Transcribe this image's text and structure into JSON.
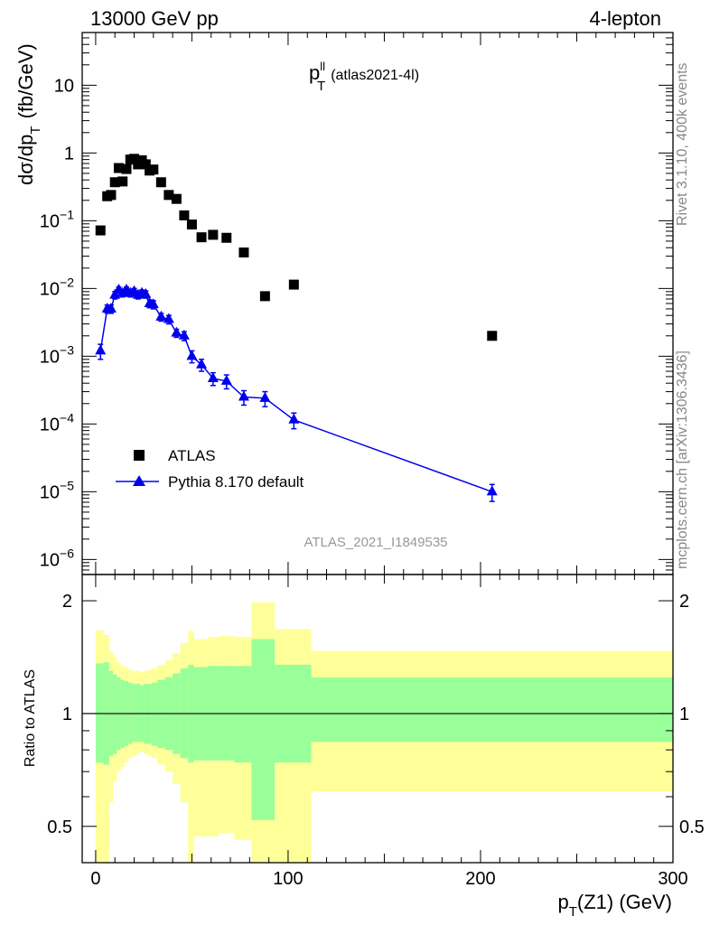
{
  "header": {
    "left": "13000 GeV pp",
    "right": "4-lepton"
  },
  "side_text": {
    "rivet": "Rivet 3.1.10,  400k events",
    "mcplots": "mcplots.cern.ch [arXiv:1306.3436]"
  },
  "analysis_id": "ATLAS_2021_I1849535",
  "colors": {
    "mc": "#0000ee",
    "data": "#000000",
    "band_inner": "#99ff99",
    "band_outer": "#ffff99"
  },
  "chart_data": [
    {
      "type": "scatter",
      "title": "p_T^ll (atlas2021-4l)",
      "title_main": "p",
      "title_sup": "ll",
      "title_sub": "T",
      "title_note": "(atlas2021-4l)",
      "ylabel": "dσ/dp_T (fb/GeV)",
      "ylabel_main": "dσ/dp",
      "ylabel_sub": "T",
      "ylabel_tail": "(fb/GeV)",
      "yscale": "log",
      "ylim": [
        6e-07,
        60
      ],
      "xlim": [
        -7,
        300
      ],
      "y_tick_labels": [
        {
          "v": 10,
          "text": "10"
        },
        {
          "v": 1,
          "text": "1"
        },
        {
          "v": 0.1,
          "text": "10",
          "exp": "−1"
        },
        {
          "v": 0.01,
          "text": "10",
          "exp": "−2"
        },
        {
          "v": 0.001,
          "text": "10",
          "exp": "−3"
        },
        {
          "v": 0.0001,
          "text": "10",
          "exp": "−4"
        },
        {
          "v": 1e-05,
          "text": "10",
          "exp": "−5"
        },
        {
          "v": 1e-06,
          "text": "10",
          "exp": "−6"
        }
      ],
      "legend": {
        "position": "bottom-left",
        "entries": [
          "ATLAS",
          "Pythia 8.170 default"
        ]
      },
      "series": [
        {
          "name": "ATLAS",
          "marker": "square",
          "points": [
            {
              "x": 2.5,
              "y": 0.072
            },
            {
              "x": 6,
              "y": 0.23
            },
            {
              "x": 8,
              "y": 0.24
            },
            {
              "x": 10,
              "y": 0.37
            },
            {
              "x": 12,
              "y": 0.6
            },
            {
              "x": 14,
              "y": 0.38
            },
            {
              "x": 16,
              "y": 0.58
            },
            {
              "x": 18,
              "y": 0.8
            },
            {
              "x": 20,
              "y": 0.82
            },
            {
              "x": 22,
              "y": 0.68
            },
            {
              "x": 24,
              "y": 0.78
            },
            {
              "x": 26,
              "y": 0.68
            },
            {
              "x": 28,
              "y": 0.55
            },
            {
              "x": 30,
              "y": 0.57
            },
            {
              "x": 34,
              "y": 0.37
            },
            {
              "x": 38,
              "y": 0.24
            },
            {
              "x": 42,
              "y": 0.21
            },
            {
              "x": 46,
              "y": 0.12
            },
            {
              "x": 50,
              "y": 0.088
            },
            {
              "x": 55,
              "y": 0.057
            },
            {
              "x": 61,
              "y": 0.062
            },
            {
              "x": 68,
              "y": 0.056
            },
            {
              "x": 77,
              "y": 0.034
            },
            {
              "x": 88,
              "y": 0.0077
            },
            {
              "x": 103,
              "y": 0.0114
            },
            {
              "x": 206,
              "y": 0.002
            }
          ]
        },
        {
          "name": "Pythia 8.170 default",
          "marker": "triangle",
          "points": [
            {
              "x": 2.5,
              "y": 0.0012,
              "err": 0.0003
            },
            {
              "x": 6,
              "y": 0.005,
              "err": 0.0007
            },
            {
              "x": 8,
              "y": 0.005,
              "err": 0.0007
            },
            {
              "x": 10,
              "y": 0.008,
              "err": 0.001
            },
            {
              "x": 12,
              "y": 0.0095,
              "err": 0.001
            },
            {
              "x": 14,
              "y": 0.0085,
              "err": 0.001
            },
            {
              "x": 16,
              "y": 0.0095,
              "err": 0.001
            },
            {
              "x": 18,
              "y": 0.0085,
              "err": 0.001
            },
            {
              "x": 20,
              "y": 0.009,
              "err": 0.001
            },
            {
              "x": 22,
              "y": 0.008,
              "err": 0.001
            },
            {
              "x": 24,
              "y": 0.0085,
              "err": 0.001
            },
            {
              "x": 26,
              "y": 0.0082,
              "err": 0.001
            },
            {
              "x": 28,
              "y": 0.006,
              "err": 0.0008
            },
            {
              "x": 30,
              "y": 0.0058,
              "err": 0.0008
            },
            {
              "x": 34,
              "y": 0.0038,
              "err": 0.0005
            },
            {
              "x": 38,
              "y": 0.0035,
              "err": 0.0005
            },
            {
              "x": 42,
              "y": 0.0022,
              "err": 0.0003
            },
            {
              "x": 46,
              "y": 0.002,
              "err": 0.0003
            },
            {
              "x": 50,
              "y": 0.001,
              "err": 0.0002
            },
            {
              "x": 55,
              "y": 0.00075,
              "err": 0.00015
            },
            {
              "x": 61,
              "y": 0.00047,
              "err": 0.0001
            },
            {
              "x": 68,
              "y": 0.00043,
              "err": 0.0001
            },
            {
              "x": 77,
              "y": 0.00025,
              "err": 6e-05
            },
            {
              "x": 88,
              "y": 0.00024,
              "err": 6e-05
            },
            {
              "x": 103,
              "y": 0.000115,
              "err": 3e-05
            },
            {
              "x": 206,
              "y": 1e-05,
              "err": 2.8e-06
            }
          ]
        }
      ]
    },
    {
      "type": "area",
      "ylabel": "Ratio to ATLAS",
      "xlabel": "p_T(Z1) (GeV)",
      "xlabel_main": "p",
      "xlabel_sub": "T",
      "xlabel_tail": "(Z1) (GeV)",
      "yscale": "log",
      "ylim": [
        0.4,
        2.35
      ],
      "xlim": [
        -7,
        300
      ],
      "x_ticks": [
        0,
        100,
        200,
        300
      ],
      "y_ticks": [
        0.5,
        1,
        2
      ],
      "reference_line": 1,
      "bands": [
        {
          "x0": 0,
          "x1": 4,
          "inner": [
            0.74,
            1.36
          ],
          "outer": [
            0.33,
            1.67
          ]
        },
        {
          "x0": 4,
          "x1": 7,
          "inner": [
            0.73,
            1.37
          ],
          "outer": [
            0.38,
            1.62
          ]
        },
        {
          "x0": 7,
          "x1": 9,
          "inner": [
            0.77,
            1.3
          ],
          "outer": [
            0.58,
            1.47
          ]
        },
        {
          "x0": 9,
          "x1": 11,
          "inner": [
            0.78,
            1.27
          ],
          "outer": [
            0.66,
            1.42
          ]
        },
        {
          "x0": 11,
          "x1": 13,
          "inner": [
            0.8,
            1.25
          ],
          "outer": [
            0.7,
            1.37
          ]
        },
        {
          "x0": 13,
          "x1": 15,
          "inner": [
            0.81,
            1.23
          ],
          "outer": [
            0.72,
            1.34
          ]
        },
        {
          "x0": 15,
          "x1": 17,
          "inner": [
            0.82,
            1.22
          ],
          "outer": [
            0.74,
            1.33
          ]
        },
        {
          "x0": 17,
          "x1": 19,
          "inner": [
            0.83,
            1.21
          ],
          "outer": [
            0.76,
            1.31
          ]
        },
        {
          "x0": 19,
          "x1": 21,
          "inner": [
            0.84,
            1.2
          ],
          "outer": [
            0.77,
            1.3
          ]
        },
        {
          "x0": 21,
          "x1": 23,
          "inner": [
            0.84,
            1.2
          ],
          "outer": [
            0.78,
            1.3
          ]
        },
        {
          "x0": 23,
          "x1": 25,
          "inner": [
            0.84,
            1.19
          ],
          "outer": [
            0.79,
            1.29
          ]
        },
        {
          "x0": 25,
          "x1": 27,
          "inner": [
            0.83,
            1.2
          ],
          "outer": [
            0.78,
            1.3
          ]
        },
        {
          "x0": 27,
          "x1": 29,
          "inner": [
            0.83,
            1.2
          ],
          "outer": [
            0.77,
            1.31
          ]
        },
        {
          "x0": 29,
          "x1": 32,
          "inner": [
            0.82,
            1.21
          ],
          "outer": [
            0.76,
            1.32
          ]
        },
        {
          "x0": 32,
          "x1": 36,
          "inner": [
            0.81,
            1.23
          ],
          "outer": [
            0.73,
            1.35
          ]
        },
        {
          "x0": 36,
          "x1": 40,
          "inner": [
            0.8,
            1.25
          ],
          "outer": [
            0.7,
            1.39
          ]
        },
        {
          "x0": 40,
          "x1": 44,
          "inner": [
            0.78,
            1.28
          ],
          "outer": [
            0.65,
            1.45
          ]
        },
        {
          "x0": 44,
          "x1": 48,
          "inner": [
            0.76,
            1.32
          ],
          "outer": [
            0.58,
            1.54
          ]
        },
        {
          "x0": 48,
          "x1": 51,
          "inner": [
            0.74,
            1.35
          ],
          "outer": [
            0.4,
            1.66
          ]
        },
        {
          "x0": 51,
          "x1": 58,
          "inner": [
            0.75,
            1.33
          ],
          "outer": [
            0.47,
            1.58
          ]
        },
        {
          "x0": 58,
          "x1": 64,
          "inner": [
            0.75,
            1.34
          ],
          "outer": [
            0.47,
            1.6
          ]
        },
        {
          "x0": 64,
          "x1": 72,
          "inner": [
            0.75,
            1.34
          ],
          "outer": [
            0.48,
            1.61
          ]
        },
        {
          "x0": 72,
          "x1": 81,
          "inner": [
            0.74,
            1.34
          ],
          "outer": [
            0.46,
            1.6
          ]
        },
        {
          "x0": 81,
          "x1": 93,
          "inner": [
            0.52,
            1.58
          ],
          "outer": [
            0.38,
            1.98
          ]
        },
        {
          "x0": 93,
          "x1": 112,
          "inner": [
            0.74,
            1.35
          ],
          "outer": [
            0.4,
            1.68
          ]
        },
        {
          "x0": 112,
          "x1": 300,
          "inner": [
            0.84,
            1.25
          ],
          "outer": [
            0.62,
            1.47
          ]
        }
      ]
    }
  ]
}
